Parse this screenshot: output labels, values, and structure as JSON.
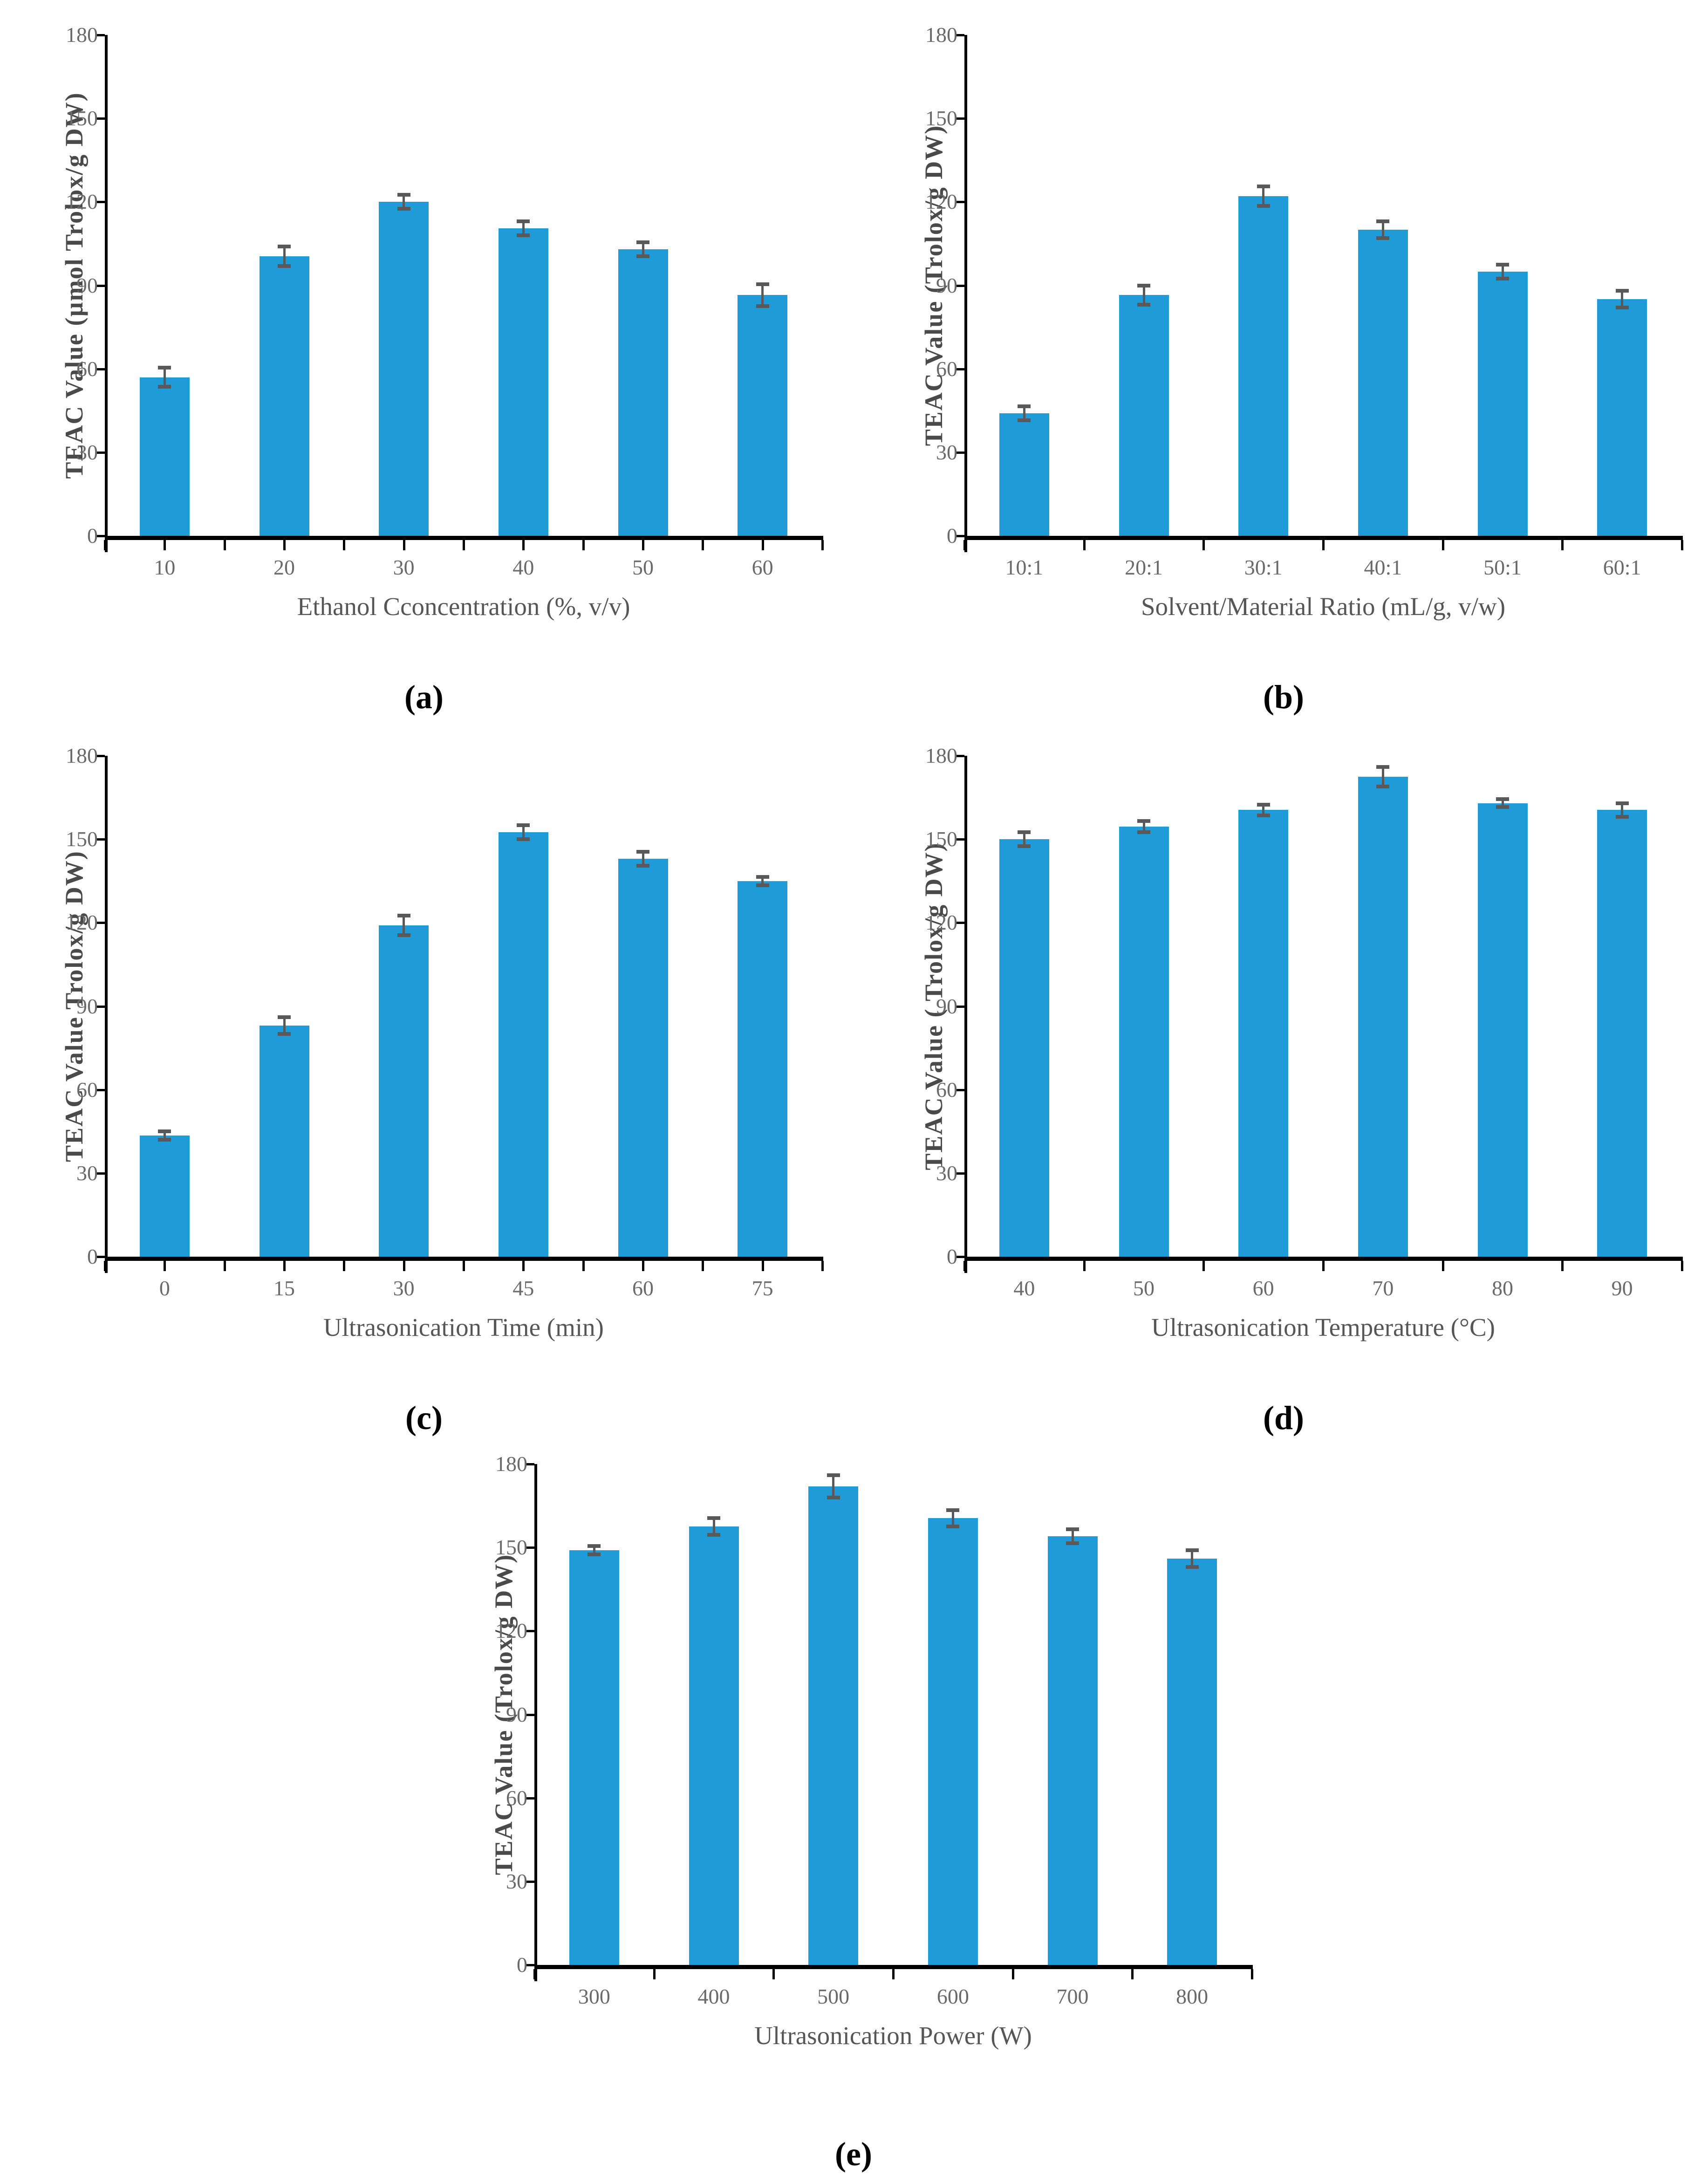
{
  "style": {
    "bar_color": "#1F9BD7",
    "error_bar_color": "#595959",
    "axis_color": "#000000",
    "tick_label_color": "#6A6A6A",
    "axis_title_color": "#565656",
    "y_axis_title_color": "#4A4A4A",
    "panel_letter_color": "#000000",
    "background_color": "#FFFFFF"
  },
  "chart_data": [
    {
      "type": "bar",
      "panel_label": "(a)",
      "title": "",
      "xlabel": "Ethanol Cconcentration (%,  v/v)",
      "ylabel": "TEAC Value (µmol Trolox/g DW)",
      "categories": [
        "10",
        "20",
        "30",
        "40",
        "50",
        "60"
      ],
      "values": [
        57,
        100.5,
        120,
        110.5,
        103,
        86.5
      ],
      "errors": [
        3.5,
        3.5,
        2.5,
        2.5,
        2.5,
        4
      ],
      "ylim": [
        0,
        180
      ],
      "ytick_step": 30,
      "x_tick_marks": "half-interval",
      "grid": false,
      "legend": false
    },
    {
      "type": "bar",
      "panel_label": "(b)",
      "title": "",
      "xlabel": "Solvent/Material Ratio (mL/g, v/w)",
      "ylabel": "TEAC Value (Trolox/g DW)",
      "categories": [
        "10:1",
        "20:1",
        "30:1",
        "40:1",
        "50:1",
        "60:1"
      ],
      "values": [
        44,
        86.5,
        122,
        110,
        95,
        85
      ],
      "errors": [
        2.5,
        3.5,
        3.5,
        3,
        2.5,
        3
      ],
      "ylim": [
        0,
        180
      ],
      "ytick_step": 30,
      "x_tick_marks": "interval",
      "grid": false,
      "legend": false
    },
    {
      "type": "bar",
      "panel_label": "(c)",
      "title": "",
      "xlabel": "Ultrasonication Time (min)",
      "ylabel": "TEAC Value Trolox/g DW)",
      "categories": [
        "0",
        "15",
        "30",
        "45",
        "60",
        "75"
      ],
      "values": [
        43.5,
        83,
        119,
        152.5,
        143,
        135
      ],
      "errors": [
        1.5,
        3,
        3.5,
        2.5,
        2.5,
        1.5
      ],
      "ylim": [
        0,
        180
      ],
      "ytick_step": 30,
      "x_tick_marks": "half-interval",
      "grid": false,
      "legend": false
    },
    {
      "type": "bar",
      "panel_label": "(d)",
      "title": "",
      "xlabel": "Ultrasonication Temperature (°C)",
      "ylabel": "TEAC Value ( Trolox/g DW)",
      "categories": [
        "40",
        "50",
        "60",
        "70",
        "80",
        "90"
      ],
      "values": [
        150,
        154.5,
        160.5,
        172.5,
        163,
        160.5
      ],
      "errors": [
        2.5,
        2,
        2,
        3.5,
        1.5,
        2.5
      ],
      "ylim": [
        0,
        180
      ],
      "ytick_step": 30,
      "x_tick_marks": "interval",
      "grid": false,
      "legend": false
    },
    {
      "type": "bar",
      "panel_label": "(e)",
      "title": "",
      "xlabel": "Ultrasonication Power (W)",
      "ylabel": "TEAC Value (Trolox/g DW)",
      "categories": [
        "300",
        "400",
        "500",
        "600",
        "700",
        "800"
      ],
      "values": [
        149,
        157.5,
        172,
        160.5,
        154,
        146
      ],
      "errors": [
        1.5,
        3,
        4,
        3,
        2.5,
        3
      ],
      "ylim": [
        0,
        180
      ],
      "ytick_step": 30,
      "x_tick_marks": "interval",
      "grid": false,
      "legend": false
    }
  ]
}
